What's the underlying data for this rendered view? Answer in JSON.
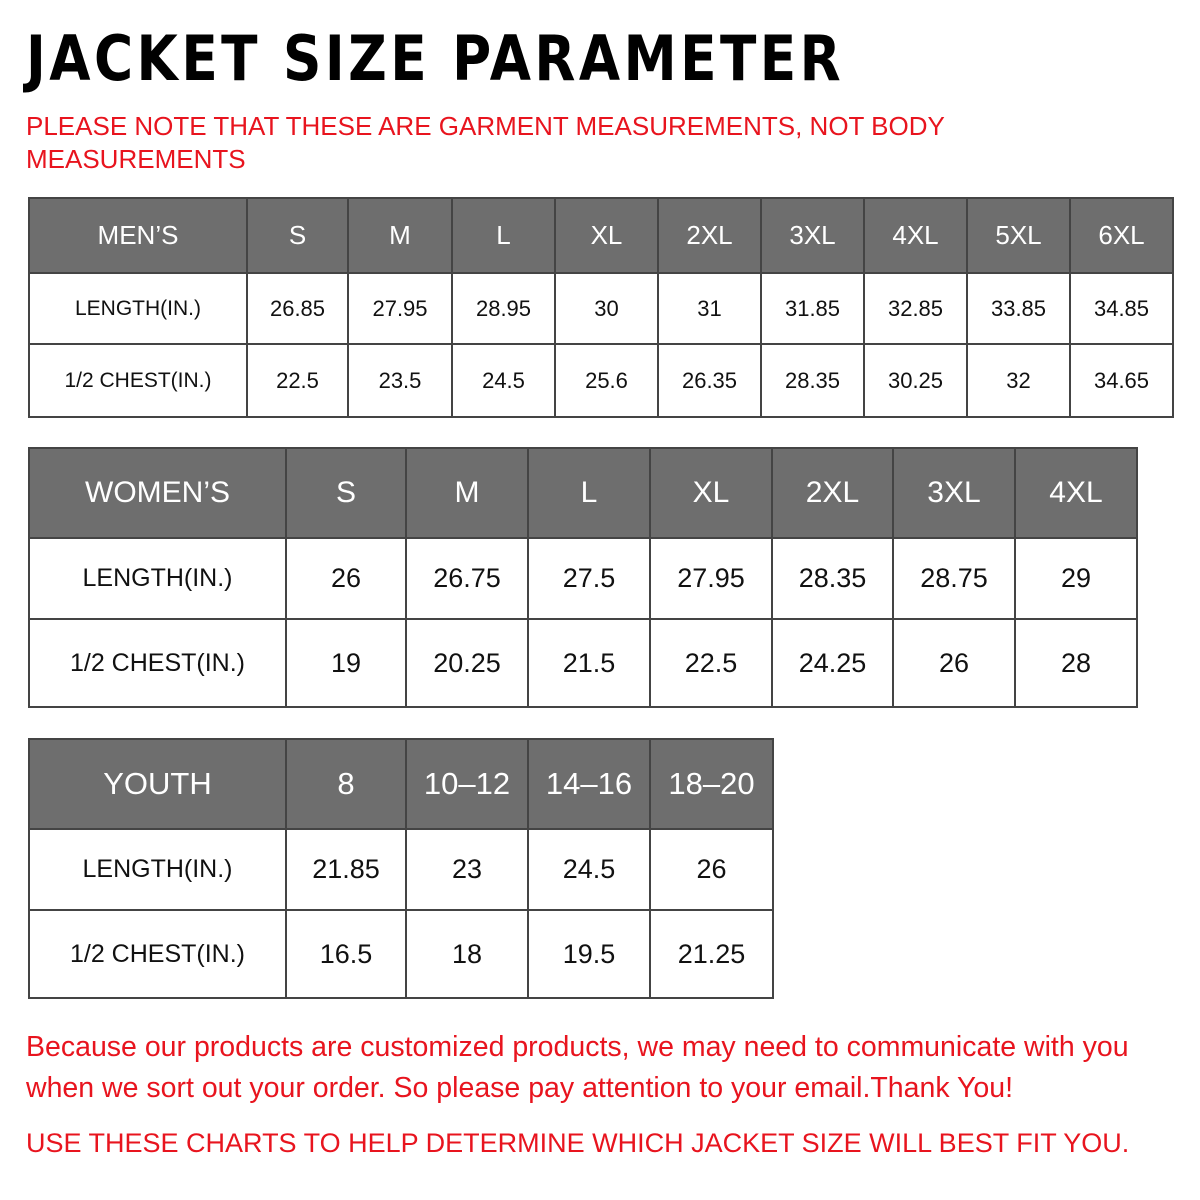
{
  "header": {
    "title": "JACKET  SIZE  PARAMETER",
    "note": "PLEASE NOTE THAT THESE ARE GARMENT MEASUREMENTS, NOT BODY MEASUREMENTS"
  },
  "tables": [
    {
      "header": [
        "MEN’S",
        "S",
        "M",
        "L",
        "XL",
        "2XL",
        "3XL",
        "4XL",
        "5XL",
        "6XL"
      ],
      "rows": [
        [
          "LENGTH(IN.)",
          "26.85",
          "27.95",
          "28.95",
          "30",
          "31",
          "31.85",
          "32.85",
          "33.85",
          "34.85"
        ],
        [
          "1/2 CHEST(IN.)",
          "22.5",
          "23.5",
          "24.5",
          "25.6",
          "26.35",
          "28.35",
          "30.25",
          "32",
          "34.65"
        ]
      ]
    },
    {
      "header": [
        "WOMEN’S",
        "S",
        "M",
        "L",
        "XL",
        "2XL",
        "3XL",
        "4XL"
      ],
      "rows": [
        [
          "LENGTH(IN.)",
          "26",
          "26.75",
          "27.5",
          "27.95",
          "28.35",
          "28.75",
          "29"
        ],
        [
          "1/2 CHEST(IN.)",
          "19",
          "20.25",
          "21.5",
          "22.5",
          "24.25",
          "26",
          "28"
        ]
      ]
    },
    {
      "header": [
        "YOUTH",
        "8",
        "10–12",
        "14–16",
        "18–20"
      ],
      "rows": [
        [
          "LENGTH(IN.)",
          "21.85",
          "23",
          "24.5",
          "26"
        ],
        [
          "1/2 CHEST(IN.)",
          "16.5",
          "18",
          "19.5",
          "21.25"
        ]
      ]
    }
  ],
  "footer": {
    "message": "Because our products are customized products, we may need to communicate with you when we sort out your order. So please pay attention to your email.Thank You!",
    "instruction": "USE THESE CHARTS TO HELP DETERMINE WHICH JACKET SIZE WILL BEST FIT YOU."
  }
}
